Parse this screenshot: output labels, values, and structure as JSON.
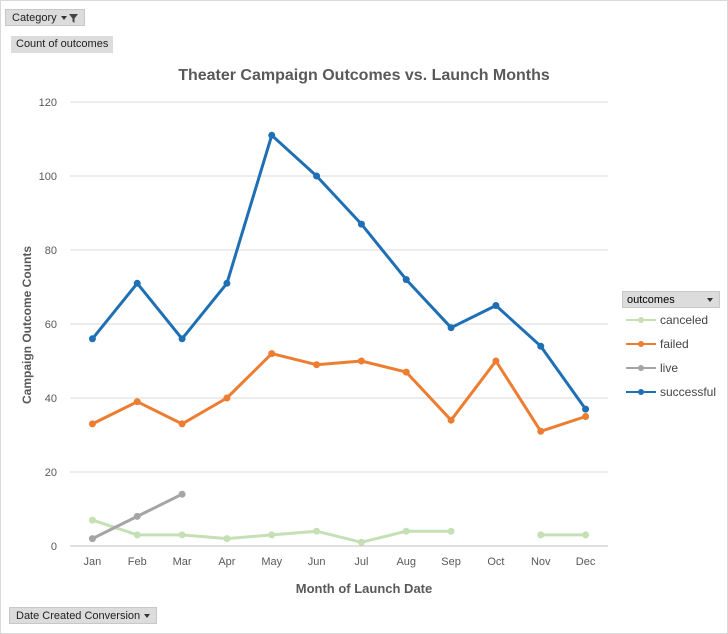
{
  "pivot": {
    "category_button": "Category",
    "values_label": "Count of outcomes",
    "axis_button": "Date Created Conversion",
    "legend_button": "outcomes"
  },
  "chart_data": {
    "type": "line",
    "title": "Theater Campaign Outcomes vs. Launch Months",
    "xlabel": "Month of Launch Date",
    "ylabel": "Campaign Outcome Counts",
    "categories": [
      "Jan",
      "Feb",
      "Mar",
      "Apr",
      "May",
      "Jun",
      "Jul",
      "Aug",
      "Sep",
      "Oct",
      "Nov",
      "Dec"
    ],
    "ylim": [
      0,
      120
    ],
    "yticks": [
      0,
      20,
      40,
      60,
      80,
      100,
      120
    ],
    "grid": true,
    "legend_position": "right",
    "series": [
      {
        "name": "canceled",
        "color": "#c5e0b4",
        "values": [
          7,
          3,
          3,
          2,
          3,
          4,
          1,
          4,
          4,
          null,
          3,
          3
        ]
      },
      {
        "name": "failed",
        "color": "#ed7d31",
        "values": [
          33,
          39,
          33,
          40,
          52,
          49,
          50,
          47,
          34,
          50,
          31,
          35
        ]
      },
      {
        "name": "live",
        "color": "#a5a5a5",
        "values": [
          2,
          8,
          14,
          null,
          null,
          null,
          null,
          null,
          null,
          null,
          null,
          null
        ]
      },
      {
        "name": "successful",
        "color": "#1f6fb5",
        "values": [
          56,
          71,
          56,
          71,
          111,
          100,
          87,
          72,
          59,
          65,
          54,
          37
        ]
      }
    ]
  }
}
